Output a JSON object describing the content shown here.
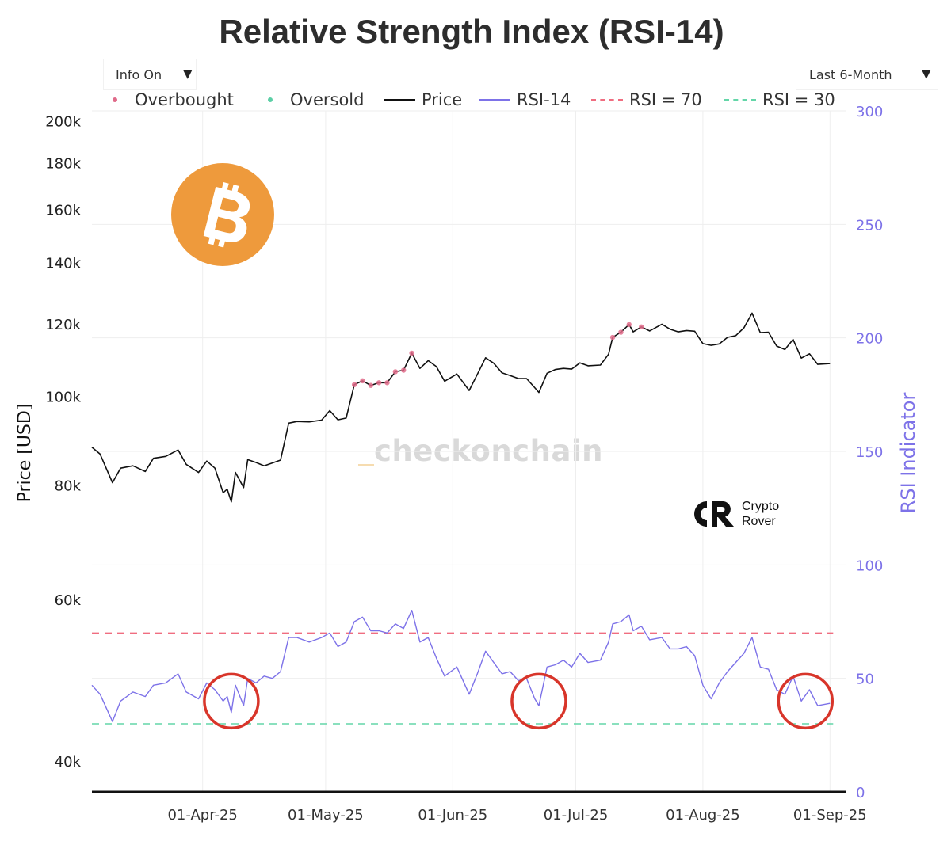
{
  "header": {
    "title": "Relative Strength Index (RSI-14)",
    "info_dropdown": {
      "label": "Info On",
      "arrow": "▼"
    },
    "range_dropdown": {
      "label": "Last 6-Month",
      "arrow": "▼"
    }
  },
  "watermark": "checkonchain",
  "brand": {
    "crypto_rover_line1": "Crypto",
    "crypto_rover_line2": "Rover",
    "logo_icon": "bitcoin-icon"
  },
  "colors": {
    "price": "#111111",
    "rsi": "#7d72e8",
    "overbought": "#e06b8a",
    "oversold": "#5ccfa6",
    "rsi70_line": "#f06d80",
    "rsi30_line": "#63d6a8",
    "circle": "#d8352a",
    "bitcoin": "#ee9a3c",
    "right_axis": "#7d72e8"
  },
  "chart_data": {
    "type": "line",
    "title": "Relative Strength Index (RSI-14)",
    "legend": {
      "placement": "top",
      "entries": [
        "Overbought",
        "Oversold",
        "Price",
        "RSI-14",
        "RSI = 70",
        "RSI = 30"
      ]
    },
    "grid": true,
    "x_axis": {
      "type": "date",
      "ticks": [
        "2025-04-01",
        "2025-05-01",
        "2025-06-01",
        "2025-07-01",
        "2025-08-01",
        "2025-09-01"
      ],
      "tick_labels": [
        "01-Apr-25",
        "01-May-25",
        "01-Jun-25",
        "01-Jul-25",
        "01-Aug-25",
        "01-Sep-25"
      ],
      "range": [
        "2025-03-05",
        "2025-09-05"
      ]
    },
    "y_left": {
      "label": "Price [USD]",
      "scale": "log",
      "range": [
        37000,
        205000
      ],
      "ticks": [
        40000,
        60000,
        80000,
        100000,
        120000,
        140000,
        160000,
        180000,
        200000
      ],
      "tick_labels": [
        "40k",
        "60k",
        "80k",
        "100k",
        "120k",
        "140k",
        "160k",
        "180k",
        "200k"
      ]
    },
    "y_right": {
      "label": "RSI Indicator",
      "range": [
        0,
        300
      ],
      "ticks": [
        0,
        50,
        100,
        150,
        200,
        250,
        300
      ],
      "tick_labels": [
        "0",
        "50",
        "100",
        "150",
        "200",
        "250",
        "300"
      ]
    },
    "reference_lines": [
      {
        "name": "RSI = 70",
        "value": 70
      },
      {
        "name": "RSI = 30",
        "value": 30
      }
    ],
    "series": [
      {
        "name": "Price",
        "axis": "left",
        "points": [
          [
            "2025-03-05",
            88000
          ],
          [
            "2025-03-07",
            86500
          ],
          [
            "2025-03-10",
            80500
          ],
          [
            "2025-03-12",
            83500
          ],
          [
            "2025-03-15",
            84000
          ],
          [
            "2025-03-18",
            82800
          ],
          [
            "2025-03-20",
            85600
          ],
          [
            "2025-03-23",
            86000
          ],
          [
            "2025-03-26",
            87400
          ],
          [
            "2025-03-28",
            84300
          ],
          [
            "2025-03-31",
            82600
          ],
          [
            "2025-04-02",
            85000
          ],
          [
            "2025-04-04",
            83500
          ],
          [
            "2025-04-06",
            78500
          ],
          [
            "2025-04-07",
            79200
          ],
          [
            "2025-04-08",
            76700
          ],
          [
            "2025-04-09",
            82600
          ],
          [
            "2025-04-11",
            79500
          ],
          [
            "2025-04-12",
            85300
          ],
          [
            "2025-04-14",
            84700
          ],
          [
            "2025-04-16",
            84000
          ],
          [
            "2025-04-18",
            84600
          ],
          [
            "2025-04-20",
            85200
          ],
          [
            "2025-04-22",
            93500
          ],
          [
            "2025-04-24",
            93900
          ],
          [
            "2025-04-27",
            93800
          ],
          [
            "2025-04-30",
            94200
          ],
          [
            "2025-05-02",
            96500
          ],
          [
            "2025-05-04",
            94300
          ],
          [
            "2025-05-06",
            94700
          ],
          [
            "2025-05-08",
            103000
          ],
          [
            "2025-05-10",
            104000
          ],
          [
            "2025-05-12",
            102800
          ],
          [
            "2025-05-14",
            103500
          ],
          [
            "2025-05-16",
            103500
          ],
          [
            "2025-05-18",
            106400
          ],
          [
            "2025-05-20",
            106800
          ],
          [
            "2025-05-22",
            111500
          ],
          [
            "2025-05-24",
            107300
          ],
          [
            "2025-05-26",
            109400
          ],
          [
            "2025-05-28",
            107800
          ],
          [
            "2025-05-30",
            103900
          ],
          [
            "2025-06-02",
            105800
          ],
          [
            "2025-06-05",
            101500
          ],
          [
            "2025-06-07",
            105700
          ],
          [
            "2025-06-09",
            110200
          ],
          [
            "2025-06-11",
            108700
          ],
          [
            "2025-06-13",
            106100
          ],
          [
            "2025-06-15",
            105400
          ],
          [
            "2025-06-17",
            104600
          ],
          [
            "2025-06-19",
            104600
          ],
          [
            "2025-06-21",
            102200
          ],
          [
            "2025-06-22",
            101000
          ],
          [
            "2025-06-24",
            106000
          ],
          [
            "2025-06-26",
            107000
          ],
          [
            "2025-06-28",
            107300
          ],
          [
            "2025-06-30",
            107100
          ],
          [
            "2025-07-02",
            108800
          ],
          [
            "2025-07-04",
            108000
          ],
          [
            "2025-07-07",
            108200
          ],
          [
            "2025-07-09",
            111200
          ],
          [
            "2025-07-10",
            116000
          ],
          [
            "2025-07-12",
            117500
          ],
          [
            "2025-07-14",
            119800
          ],
          [
            "2025-07-15",
            117600
          ],
          [
            "2025-07-17",
            119100
          ],
          [
            "2025-07-19",
            117900
          ],
          [
            "2025-07-22",
            119900
          ],
          [
            "2025-07-24",
            118400
          ],
          [
            "2025-07-26",
            117600
          ],
          [
            "2025-07-28",
            118000
          ],
          [
            "2025-07-30",
            117800
          ],
          [
            "2025-08-01",
            114200
          ],
          [
            "2025-08-03",
            113700
          ],
          [
            "2025-08-05",
            114100
          ],
          [
            "2025-08-07",
            116000
          ],
          [
            "2025-08-09",
            116500
          ],
          [
            "2025-08-11",
            118800
          ],
          [
            "2025-08-13",
            123300
          ],
          [
            "2025-08-15",
            117400
          ],
          [
            "2025-08-17",
            117500
          ],
          [
            "2025-08-19",
            113500
          ],
          [
            "2025-08-21",
            112500
          ],
          [
            "2025-08-23",
            115400
          ],
          [
            "2025-08-25",
            110100
          ],
          [
            "2025-08-27",
            111300
          ],
          [
            "2025-08-29",
            108400
          ],
          [
            "2025-09-01",
            108600
          ]
        ]
      },
      {
        "name": "RSI-14",
        "axis": "right",
        "points": [
          [
            "2025-03-05",
            47
          ],
          [
            "2025-03-07",
            43
          ],
          [
            "2025-03-10",
            31
          ],
          [
            "2025-03-12",
            40
          ],
          [
            "2025-03-15",
            44
          ],
          [
            "2025-03-18",
            42
          ],
          [
            "2025-03-20",
            47
          ],
          [
            "2025-03-23",
            48
          ],
          [
            "2025-03-26",
            52
          ],
          [
            "2025-03-28",
            44
          ],
          [
            "2025-03-31",
            41
          ],
          [
            "2025-04-02",
            48
          ],
          [
            "2025-04-04",
            45
          ],
          [
            "2025-04-06",
            40
          ],
          [
            "2025-04-07",
            42
          ],
          [
            "2025-04-08",
            35
          ],
          [
            "2025-04-09",
            47
          ],
          [
            "2025-04-11",
            38
          ],
          [
            "2025-04-12",
            50
          ],
          [
            "2025-04-14",
            48
          ],
          [
            "2025-04-16",
            51
          ],
          [
            "2025-04-18",
            50
          ],
          [
            "2025-04-20",
            53
          ],
          [
            "2025-04-22",
            68
          ],
          [
            "2025-04-24",
            68
          ],
          [
            "2025-04-27",
            66
          ],
          [
            "2025-04-30",
            68
          ],
          [
            "2025-05-02",
            70
          ],
          [
            "2025-05-04",
            64
          ],
          [
            "2025-05-06",
            66
          ],
          [
            "2025-05-08",
            75
          ],
          [
            "2025-05-10",
            77
          ],
          [
            "2025-05-12",
            71
          ],
          [
            "2025-05-14",
            71
          ],
          [
            "2025-05-16",
            70
          ],
          [
            "2025-05-18",
            74
          ],
          [
            "2025-05-20",
            72
          ],
          [
            "2025-05-22",
            80
          ],
          [
            "2025-05-24",
            66
          ],
          [
            "2025-05-26",
            68
          ],
          [
            "2025-05-28",
            59
          ],
          [
            "2025-05-30",
            51
          ],
          [
            "2025-06-02",
            55
          ],
          [
            "2025-06-05",
            43
          ],
          [
            "2025-06-07",
            52
          ],
          [
            "2025-06-09",
            62
          ],
          [
            "2025-06-11",
            57
          ],
          [
            "2025-06-13",
            52
          ],
          [
            "2025-06-15",
            53
          ],
          [
            "2025-06-17",
            49
          ],
          [
            "2025-06-19",
            50
          ],
          [
            "2025-06-21",
            41
          ],
          [
            "2025-06-22",
            38
          ],
          [
            "2025-06-24",
            55
          ],
          [
            "2025-06-26",
            56
          ],
          [
            "2025-06-28",
            58
          ],
          [
            "2025-06-30",
            55
          ],
          [
            "2025-07-02",
            61
          ],
          [
            "2025-07-04",
            57
          ],
          [
            "2025-07-07",
            58
          ],
          [
            "2025-07-09",
            66
          ],
          [
            "2025-07-10",
            74
          ],
          [
            "2025-07-12",
            75
          ],
          [
            "2025-07-14",
            78
          ],
          [
            "2025-07-15",
            71
          ],
          [
            "2025-07-17",
            73
          ],
          [
            "2025-07-19",
            67
          ],
          [
            "2025-07-22",
            68
          ],
          [
            "2025-07-24",
            63
          ],
          [
            "2025-07-26",
            63
          ],
          [
            "2025-07-28",
            64
          ],
          [
            "2025-07-30",
            60
          ],
          [
            "2025-08-01",
            47
          ],
          [
            "2025-08-03",
            41
          ],
          [
            "2025-08-05",
            48
          ],
          [
            "2025-08-07",
            53
          ],
          [
            "2025-08-09",
            57
          ],
          [
            "2025-08-11",
            61
          ],
          [
            "2025-08-13",
            68
          ],
          [
            "2025-08-15",
            55
          ],
          [
            "2025-08-17",
            54
          ],
          [
            "2025-08-19",
            45
          ],
          [
            "2025-08-21",
            43
          ],
          [
            "2025-08-23",
            51
          ],
          [
            "2025-08-25",
            40
          ],
          [
            "2025-08-27",
            45
          ],
          [
            "2025-08-29",
            38
          ],
          [
            "2025-09-01",
            39
          ]
        ]
      },
      {
        "name": "Overbought",
        "axis": "left",
        "points": [
          [
            "2025-05-08",
            103000
          ],
          [
            "2025-05-10",
            104000
          ],
          [
            "2025-05-12",
            102800
          ],
          [
            "2025-05-14",
            103500
          ],
          [
            "2025-05-16",
            103500
          ],
          [
            "2025-05-18",
            106400
          ],
          [
            "2025-05-20",
            106800
          ],
          [
            "2025-05-22",
            111500
          ],
          [
            "2025-07-10",
            116000
          ],
          [
            "2025-07-12",
            117500
          ],
          [
            "2025-07-14",
            119800
          ],
          [
            "2025-07-17",
            119100
          ]
        ]
      },
      {
        "name": "Oversold",
        "axis": "left",
        "points": []
      }
    ],
    "annotations": [
      {
        "type": "circle",
        "center": [
          "2025-04-08",
          40
        ]
      },
      {
        "type": "circle",
        "center": [
          "2025-06-22",
          40
        ]
      },
      {
        "type": "circle",
        "center": [
          "2025-08-26",
          40
        ]
      }
    ]
  }
}
